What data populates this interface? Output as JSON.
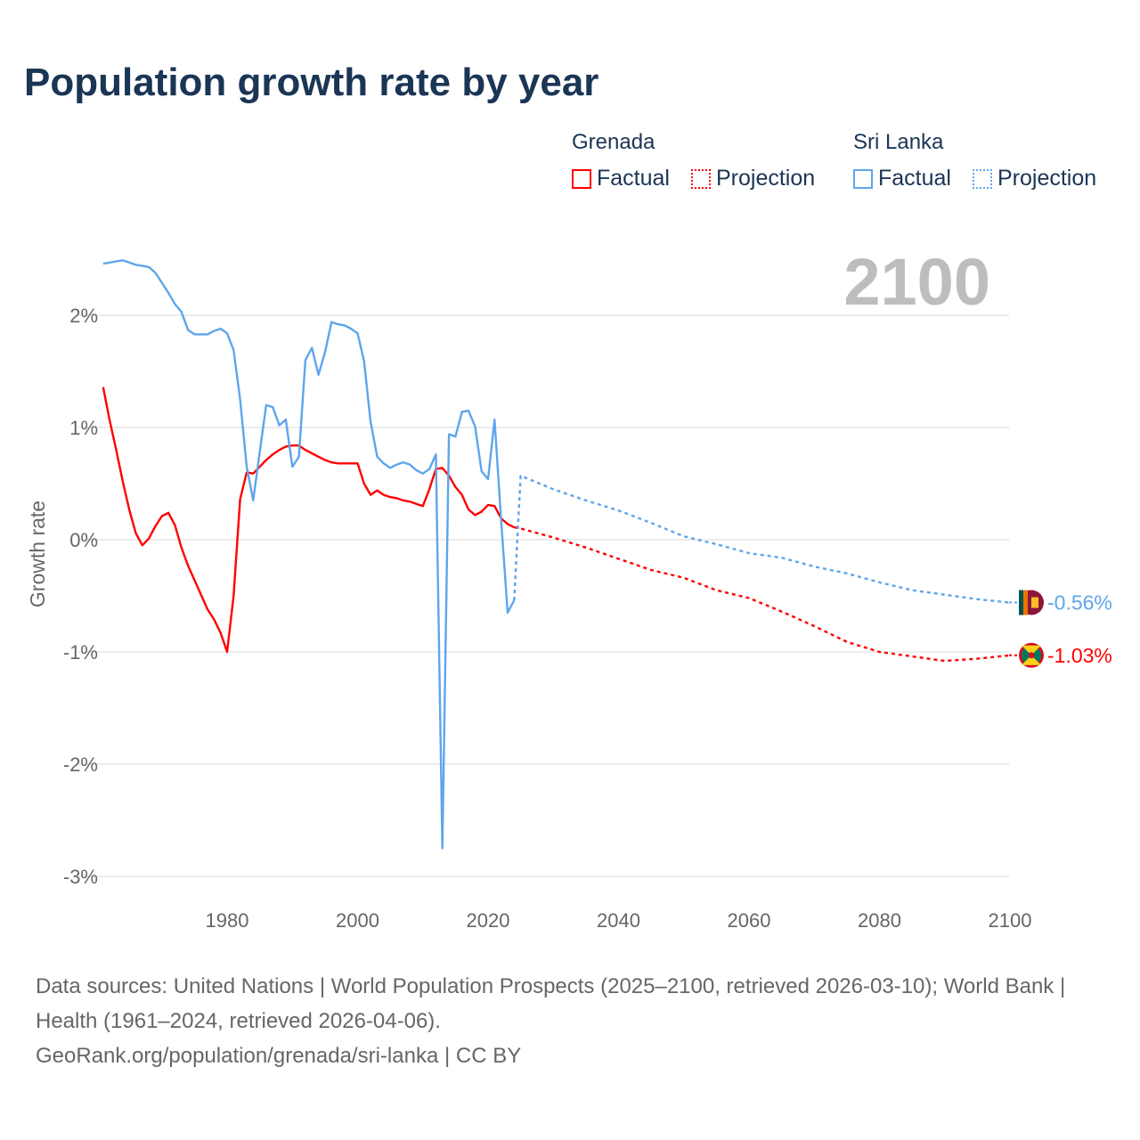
{
  "title": "Population growth rate by year",
  "legend": {
    "groups": [
      {
        "name": "Grenada",
        "factual": "Factual",
        "projection": "Projection",
        "color": "#ff0000"
      },
      {
        "name": "Sri Lanka",
        "factual": "Factual",
        "projection": "Projection",
        "color": "#5ea5ec"
      }
    ]
  },
  "year_label": "2100",
  "source": {
    "line1": "Data sources: United Nations | World Population Prospects (2025–2100, retrieved 2026-03-10); World Bank | Health (1961–2024, retrieved 2026-04-06).",
    "line2": "GeoRank.org/population/grenada/sri-lanka | CC BY"
  },
  "chart_data": {
    "type": "line",
    "title": "Population growth rate by year",
    "xlabel": "",
    "ylabel": "Growth rate",
    "xlim": [
      1961,
      2100
    ],
    "ylim": [
      -3.2,
      2.6
    ],
    "x_ticks": [
      1980,
      2000,
      2020,
      2040,
      2060,
      2080,
      2100
    ],
    "x_tick_labels": [
      "1980",
      "2000",
      "2020",
      "2040",
      "2060",
      "2080",
      "2100"
    ],
    "y_ticks": [
      2,
      1,
      0,
      -1,
      -2,
      -3
    ],
    "y_tick_labels": [
      "2%",
      "1%",
      "0%",
      "-1%",
      "-2%",
      "-3%"
    ],
    "grid": true,
    "series": [
      {
        "name": "Grenada Factual",
        "color": "#ff0000",
        "style": "solid",
        "start_year": 1961,
        "values": [
          1.36,
          1.06,
          0.8,
          0.52,
          0.27,
          0.06,
          -0.05,
          0.01,
          0.12,
          0.21,
          0.24,
          0.13,
          -0.07,
          -0.23,
          -0.36,
          -0.49,
          -0.62,
          -0.71,
          -0.83,
          -1.0,
          -0.5,
          0.36,
          0.6,
          0.59,
          0.65,
          0.71,
          0.76,
          0.8,
          0.83,
          0.84,
          0.84,
          0.8,
          0.77,
          0.74,
          0.71,
          0.69,
          0.68,
          0.68,
          0.68,
          0.68,
          0.5,
          0.4,
          0.44,
          0.4,
          0.38,
          0.37,
          0.35,
          0.34,
          0.32,
          0.3,
          0.45,
          0.63,
          0.64,
          0.57,
          0.47,
          0.4,
          0.27,
          0.22,
          0.25,
          0.31,
          0.3,
          0.19,
          0.14,
          0.11
        ]
      },
      {
        "name": "Grenada Projection",
        "color": "#ff0000",
        "style": "dotted",
        "x": [
          2024,
          2025,
          2030,
          2035,
          2040,
          2045,
          2050,
          2055,
          2060,
          2065,
          2070,
          2075,
          2080,
          2085,
          2090,
          2095,
          2100
        ],
        "values": [
          0.11,
          0.1,
          0.02,
          -0.07,
          -0.17,
          -0.27,
          -0.34,
          -0.45,
          -0.52,
          -0.64,
          -0.77,
          -0.91,
          -1.0,
          -1.04,
          -1.08,
          -1.06,
          -1.03
        ]
      },
      {
        "name": "Sri Lanka Factual",
        "color": "#5ea5ec",
        "style": "solid",
        "start_year": 1961,
        "values": [
          2.46,
          2.47,
          2.48,
          2.49,
          2.47,
          2.45,
          2.44,
          2.43,
          2.38,
          2.29,
          2.2,
          2.1,
          2.03,
          1.87,
          1.83,
          1.83,
          1.83,
          1.86,
          1.88,
          1.84,
          1.69,
          1.25,
          0.65,
          0.35,
          0.78,
          1.2,
          1.18,
          1.02,
          1.07,
          0.65,
          0.74,
          1.6,
          1.71,
          1.47,
          1.67,
          1.94,
          1.92,
          1.91,
          1.88,
          1.84,
          1.59,
          1.05,
          0.74,
          0.68,
          0.64,
          0.67,
          0.69,
          0.67,
          0.62,
          0.59,
          0.63,
          0.76,
          -2.75,
          0.94,
          0.92,
          1.14,
          1.15,
          1.01,
          0.61,
          0.54,
          1.07,
          0.17,
          -0.65,
          -0.54
        ]
      },
      {
        "name": "Sri Lanka Projection",
        "color": "#5ea5ec",
        "style": "dotted",
        "x": [
          2024,
          2025,
          2030,
          2035,
          2040,
          2045,
          2050,
          2055,
          2060,
          2065,
          2070,
          2075,
          2080,
          2085,
          2090,
          2095,
          2100
        ],
        "values": [
          -0.54,
          0.57,
          0.45,
          0.35,
          0.26,
          0.15,
          0.03,
          -0.04,
          -0.12,
          -0.16,
          -0.24,
          -0.3,
          -0.38,
          -0.45,
          -0.49,
          -0.53,
          -0.56
        ]
      }
    ],
    "end_labels": [
      {
        "country": "Sri Lanka",
        "value": -0.56,
        "label": "-0.56%",
        "color": "#5ea5ec"
      },
      {
        "country": "Grenada",
        "value": -1.03,
        "label": "-1.03%",
        "color": "#ff0000"
      }
    ]
  }
}
